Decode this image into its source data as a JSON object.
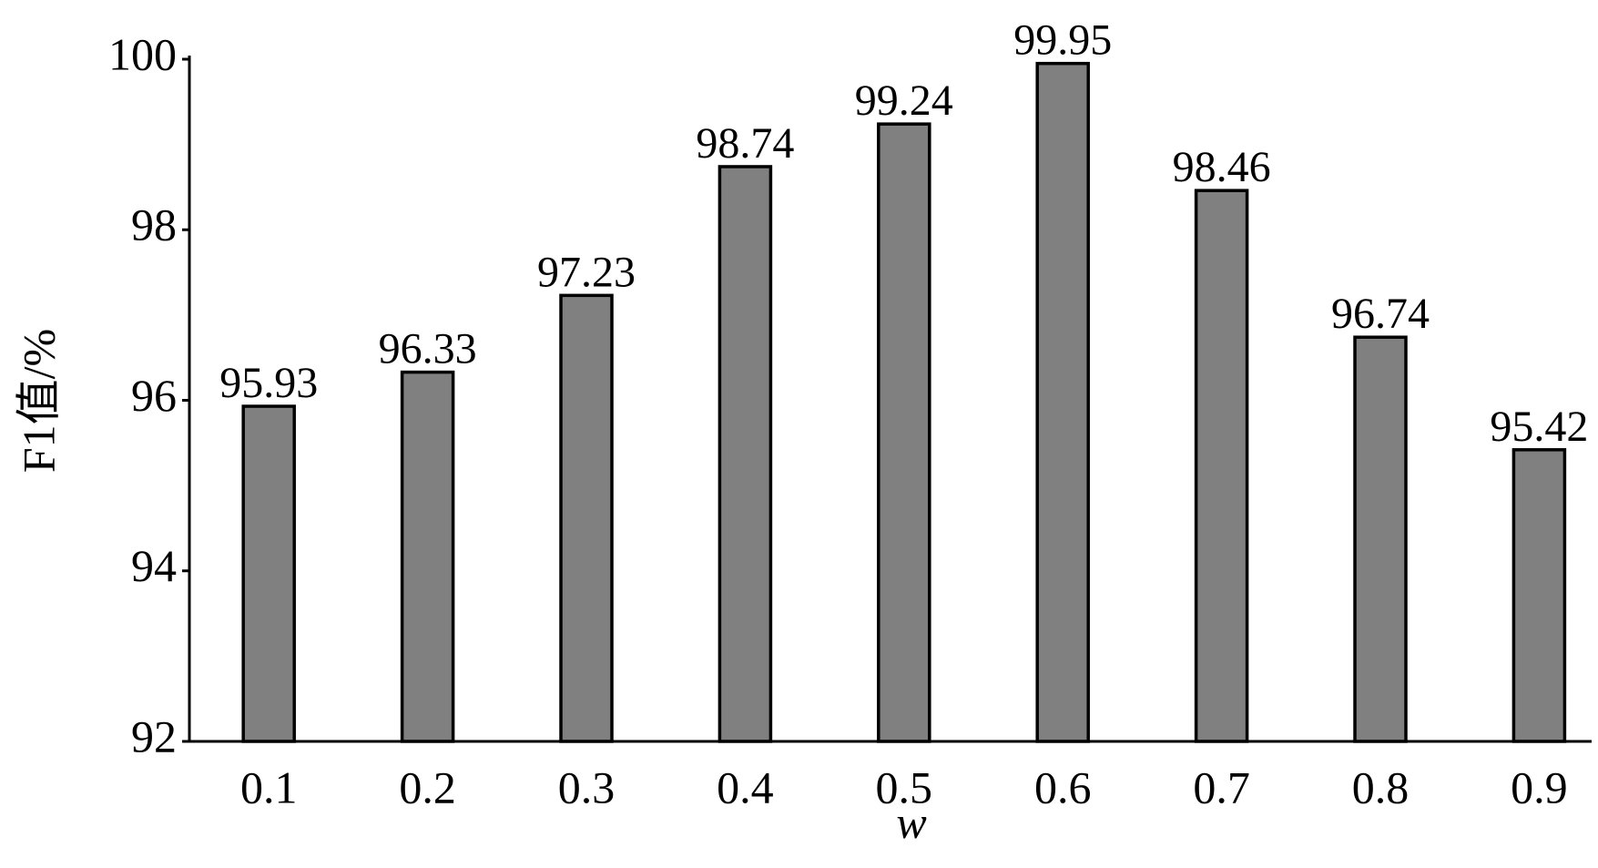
{
  "chart_data": {
    "type": "bar",
    "categories": [
      "0.1",
      "0.2",
      "0.3",
      "0.4",
      "0.5",
      "0.6",
      "0.7",
      "0.8",
      "0.9"
    ],
    "values": [
      95.93,
      96.33,
      97.23,
      98.74,
      99.24,
      99.95,
      98.46,
      96.74,
      95.42
    ],
    "color": "#808080",
    "x_label": "w",
    "y_label": "F1值/%",
    "ylim": [
      92,
      100
    ],
    "yticks": [
      92,
      94,
      96,
      98,
      100
    ],
    "grid": false
  }
}
